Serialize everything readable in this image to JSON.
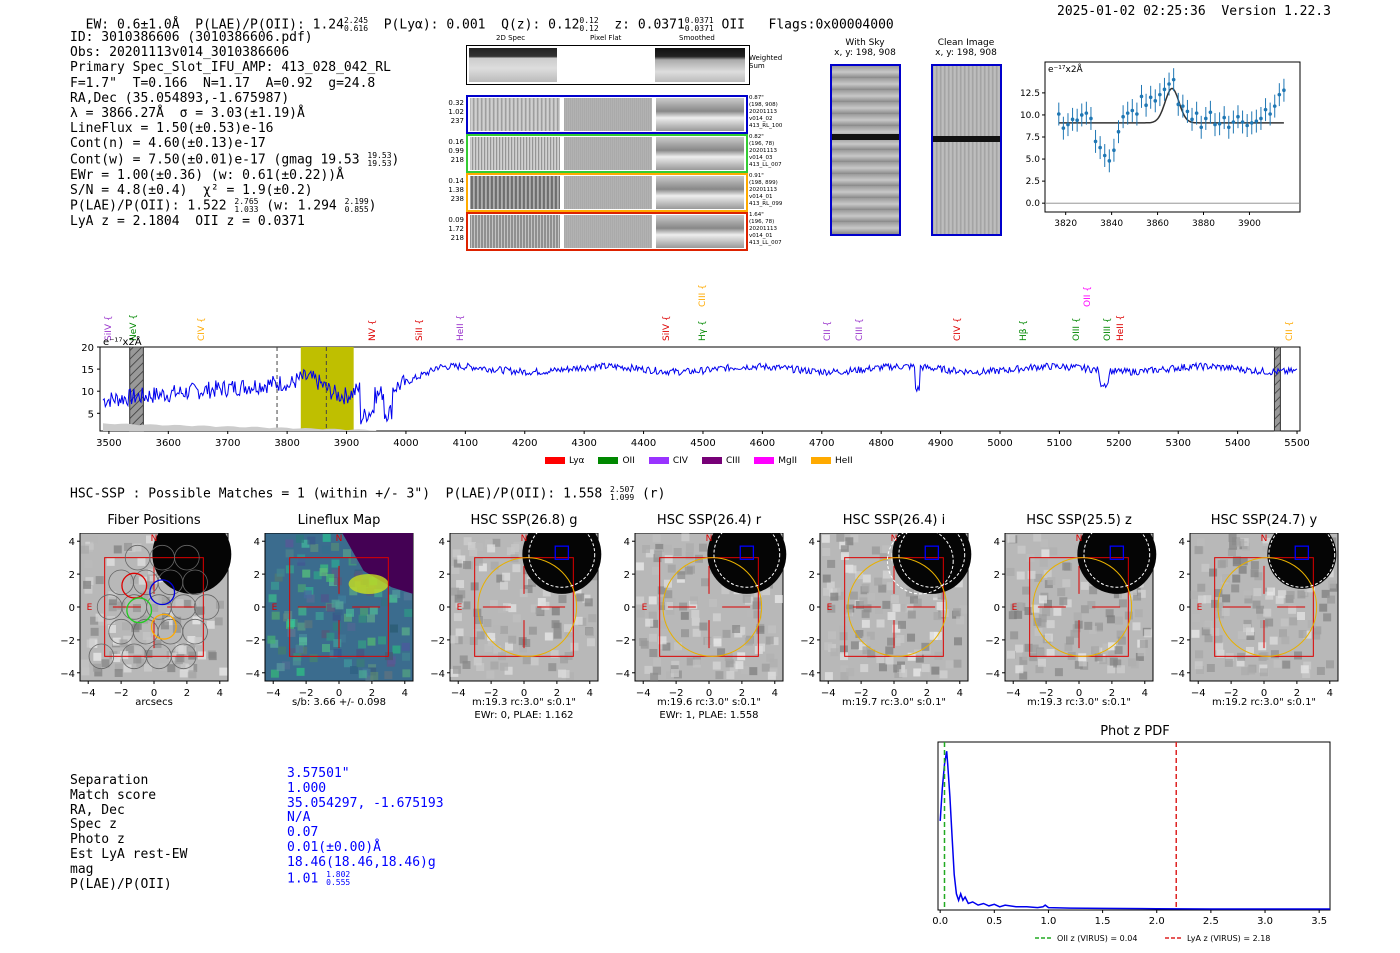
{
  "header": {
    "ew_label": "EW:",
    "ew_value": "0.6±1.0Å",
    "plae_label": "P(LAE)/P(OII):",
    "plae_value": "1.24",
    "plae_hi": "2.245",
    "plae_lo": "0.616",
    "plya_label": "P(Lyα):",
    "plya_value": "0.001",
    "qz_label": "Q(z):",
    "qz_value": "0.12",
    "qz_hi": "0.12",
    "qz_lo": "0.12",
    "z_label": "z:",
    "z_value": "0.0371",
    "z_hi": "0.0371",
    "z_lo": "0.0371",
    "z_line": "OII",
    "flags": "Flags:0x00004000",
    "datetime": "2025-01-02 02:25:36",
    "version": "Version 1.22.3"
  },
  "info": {
    "id": "ID: 3010386606 (3010386606.pdf)",
    "obs": "Obs: 20201113v014_3010386606",
    "primary": "Primary Spec_Slot_IFU_AMP: 413_028_042_RL",
    "params": "F=1.7\"  T=0.166  N=1.17  A=0.92  g=24.8",
    "radec": "RA,Dec (35.054893,-1.675987)",
    "wave": "λ = 3866.27Å  σ = 3.03(±1.19)Å",
    "lineflux": "LineFlux = 1.50(±0.53)e-16",
    "contn": "Cont(n) = 4.60(±0.13)e-17",
    "contw": "Cont(w) = 7.50(±0.01)e-17 (gmag 19.53",
    "contw_hi": "19.53",
    "contw_lo": "19.53",
    "contw_end": ")",
    "ewr": "EWr = 1.00(±0.36) (w: 0.61(±0.22))Å",
    "sn": "S/N = 4.8(±0.4)  χ² = 1.9(±0.2)",
    "plae": "P(LAE)/P(OII): 1.522",
    "plae_hi": "2.765",
    "plae_lo": "1.033",
    "plae_w": "(w: 1.294",
    "plae_w_hi": "2.199",
    "plae_w_lo": "0.855",
    "plae_w_end": ")",
    "lyaz": "LyA z = 2.1804  OII z = 0.0371"
  },
  "spec2d": {
    "col_titles": [
      "2D Spec",
      "Pixel Flat",
      "Smoothed"
    ],
    "weighted_sum": "Weighted Sum",
    "rows": [
      {
        "left": [
          "0.32",
          "1.02",
          "237"
        ],
        "right": [
          "0.87\"",
          "(198, 908)",
          "20201113",
          "v014_02",
          "413_RL_100"
        ],
        "color": "#0000cc"
      },
      {
        "left": [
          "0.16",
          "0.99",
          "218"
        ],
        "right": [
          "0.82\"",
          "(196, 78)",
          "20201113",
          "v014_03",
          "413_LL_007"
        ],
        "color": "#33cc33"
      },
      {
        "left": [
          "0.14",
          "1.38",
          "238"
        ],
        "right": [
          "0.91\"",
          "(198, 899)",
          "20201113",
          "v014_01",
          "413_RL_099"
        ],
        "color": "#ffaa00"
      },
      {
        "left": [
          "0.09",
          "1.72",
          "218"
        ],
        "right": [
          "1.64\"",
          "(196, 78)",
          "20201113",
          "v014_01",
          "413_LL_007"
        ],
        "color": "#dd2200"
      }
    ]
  },
  "with_sky": {
    "title": "With Sky",
    "coords": "x, y: 198, 908"
  },
  "clean_image": {
    "title": "Clean Image",
    "coords": "x, y: 198, 908"
  },
  "zoom_spec": {
    "unit": "e⁻¹⁷x2Å",
    "yticks": [
      "12.5",
      "10.0",
      "7.5",
      "5.0",
      "2.5",
      "0.0"
    ],
    "ytick_vals": [
      12.5,
      10.0,
      7.5,
      5.0,
      2.5,
      0.0
    ],
    "xticks": [
      "3820",
      "3840",
      "3860",
      "3880",
      "3900"
    ],
    "xtick_vals": [
      3820,
      3840,
      3860,
      3880,
      3900
    ],
    "points": [
      [
        3817,
        10.1
      ],
      [
        3819,
        8.5
      ],
      [
        3821,
        8.9
      ],
      [
        3823,
        9.5
      ],
      [
        3825,
        9.4
      ],
      [
        3827,
        10.0
      ],
      [
        3829,
        10.2
      ],
      [
        3831,
        9.6
      ],
      [
        3833,
        7.0
      ],
      [
        3835,
        6.3
      ],
      [
        3837,
        5.4
      ],
      [
        3839,
        4.8
      ],
      [
        3841,
        6.0
      ],
      [
        3843,
        8.1
      ],
      [
        3845,
        9.8
      ],
      [
        3847,
        10.2
      ],
      [
        3849,
        10.5
      ],
      [
        3851,
        10.1
      ],
      [
        3853,
        12.1
      ],
      [
        3855,
        11.1
      ],
      [
        3857,
        12.0
      ],
      [
        3859,
        11.6
      ],
      [
        3861,
        12.3
      ],
      [
        3863,
        12.9
      ],
      [
        3865,
        13.5
      ],
      [
        3867,
        14.0
      ],
      [
        3869,
        11.2
      ],
      [
        3871,
        11.0
      ],
      [
        3873,
        10.4
      ],
      [
        3875,
        9.5
      ],
      [
        3877,
        10.2
      ],
      [
        3879,
        8.6
      ],
      [
        3881,
        9.6
      ],
      [
        3883,
        10.3
      ],
      [
        3885,
        8.9
      ],
      [
        3887,
        9.0
      ],
      [
        3889,
        9.7
      ],
      [
        3891,
        8.6
      ],
      [
        3893,
        9.2
      ],
      [
        3895,
        9.8
      ],
      [
        3897,
        9.2
      ],
      [
        3899,
        8.8
      ],
      [
        3901,
        9.1
      ],
      [
        3903,
        9.3
      ],
      [
        3905,
        9.6
      ],
      [
        3907,
        10.6
      ],
      [
        3909,
        10.1
      ],
      [
        3911,
        11.0
      ],
      [
        3913,
        12.3
      ],
      [
        3915,
        12.8
      ]
    ],
    "fit_base": 9.1,
    "fit_peak": 3.9,
    "fit_center": 3866.3,
    "fit_sigma": 3.03
  },
  "full_spec": {
    "unit": "e⁻¹⁷x2Å",
    "yticks": [
      "20",
      "15",
      "10",
      "5"
    ],
    "ytick_vals": [
      20,
      15,
      10,
      5
    ],
    "xticks": [
      "3500",
      "3600",
      "3700",
      "3800",
      "3900",
      "4000",
      "4100",
      "4200",
      "4300",
      "4400",
      "4500",
      "4600",
      "4700",
      "4800",
      "4900",
      "5000",
      "5100",
      "5200",
      "5300",
      "5400",
      "5500"
    ],
    "xtick_vals": [
      3500,
      3600,
      3700,
      3800,
      3900,
      4000,
      4100,
      4200,
      4300,
      4400,
      4500,
      4600,
      4700,
      4800,
      4900,
      5000,
      5100,
      5200,
      5300,
      5400,
      5500
    ],
    "line_labels": [
      {
        "name": "SiIV",
        "w": 3500,
        "color": "#9933cc",
        "high": false
      },
      {
        "name": "NeV",
        "w": 3543,
        "color": "#008800",
        "high": false
      },
      {
        "name": "CIV",
        "w": 3656,
        "color": "#ffaa00",
        "high": false
      },
      {
        "name": "CIII",
        "w": 4500,
        "color": "#ffaa00",
        "high": true
      },
      {
        "name": "NV",
        "w": 3945,
        "color": "#dd0000",
        "high": false
      },
      {
        "name": "SiII",
        "w": 4024,
        "color": "#dd0000",
        "high": false
      },
      {
        "name": "HeII",
        "w": 4092,
        "color": "#9933cc",
        "high": false
      },
      {
        "name": "SiIV",
        "w": 4440,
        "color": "#dd0000",
        "high": false
      },
      {
        "name": "Hγ",
        "w": 4500,
        "color": "#008800",
        "high": false
      },
      {
        "name": "CII",
        "w": 4710,
        "color": "#9933cc",
        "high": false
      },
      {
        "name": "CIII",
        "w": 4765,
        "color": "#9933cc",
        "high": false
      },
      {
        "name": "CIV",
        "w": 4930,
        "color": "#dd0000",
        "high": false
      },
      {
        "name": "Hβ",
        "w": 5040,
        "color": "#008800",
        "high": false
      },
      {
        "name": "OII",
        "w": 5148,
        "color": "#ff00ff",
        "high": true
      },
      {
        "name": "OIII",
        "w": 5130,
        "color": "#008800",
        "high": false
      },
      {
        "name": "OIII",
        "w": 5182,
        "color": "#008800",
        "high": false
      },
      {
        "name": "HeII",
        "w": 5203,
        "color": "#dd0000",
        "high": false
      },
      {
        "name": "CII",
        "w": 5488,
        "color": "#ffaa00",
        "high": false
      }
    ],
    "legend": [
      {
        "label": "Lyα",
        "color": "#ff0000"
      },
      {
        "label": "OII",
        "color": "#008800"
      },
      {
        "label": "CIV",
        "color": "#9933ff"
      },
      {
        "label": "CIII",
        "color": "#770077"
      },
      {
        "label": "MgII",
        "color": "#ff00ff"
      },
      {
        "label": "HeII",
        "color": "#ffaa00"
      }
    ],
    "highlight_start": 3823,
    "highlight_end": 3912,
    "dashed_lines": [
      3783,
      3866
    ],
    "hatch_regions": [
      [
        3535,
        3558
      ],
      [
        5462,
        5472
      ]
    ]
  },
  "hsc": {
    "header": "HSC-SSP : Possible Matches = 1 (within +/- 3\")  P(LAE)/P(OII): 1.558",
    "hdr_hi": "2.507",
    "hdr_lo": "1.099",
    "hdr_band": "(r)",
    "ticks": [
      "4",
      "2",
      "0",
      "−2",
      "−4"
    ],
    "xticks": [
      "−4",
      "−2",
      "0",
      "2",
      "4"
    ],
    "tick_vals": [
      4,
      2,
      0,
      -2,
      -4
    ],
    "compass_n": "N",
    "compass_e": "E",
    "panels": [
      {
        "title": "Fiber Positions",
        "cap1": "arcsecs",
        "cap2": ""
      },
      {
        "title": "Lineflux Map",
        "cap1": "s/b: 3.66 +/- 0.098",
        "cap2": ""
      },
      {
        "title": "HSC SSP(26.8) g",
        "cap1": "m:19.3 rc:3.0\"  s:0.1\"",
        "cap2": "EWr: 0, PLAE: 1.162"
      },
      {
        "title": "HSC SSP(26.4) r",
        "cap1": "m:19.6 rc:3.0\"  s:0.1\"",
        "cap2": "EWr: 1, PLAE: 1.558"
      },
      {
        "title": "HSC SSP(26.4) i",
        "cap1": "m:19.7 rc:3.0\"  s:0.1\"",
        "cap2": ""
      },
      {
        "title": "HSC SSP(25.5) z",
        "cap1": "m:19.3 rc:3.0\"  s:0.1\"",
        "cap2": ""
      },
      {
        "title": "HSC SSP(24.7) y",
        "cap1": "m:19.2 rc:3.0\"  s:0.1\"",
        "cap2": ""
      }
    ]
  },
  "match": {
    "labels": [
      "Separation",
      "Match score",
      "RA, Dec",
      "Spec z",
      "Photo z",
      "Est LyA rest-EW",
      "mag",
      "P(LAE)/P(OII)"
    ],
    "values": [
      "3.57501\"",
      "1.000",
      "35.054297, -1.675193",
      "N/A",
      "0.07",
      "0.01(±0.00)Å",
      "18.46(18.46,18.46)g",
      "1.01"
    ],
    "plae_hi": "1.802",
    "plae_lo": "0.555"
  },
  "photz": {
    "title": "Phot z PDF",
    "xticks": [
      "0.0",
      "0.5",
      "1.0",
      "1.5",
      "2.0",
      "2.5",
      "3.0",
      "3.5"
    ],
    "xtick_vals": [
      0,
      0.5,
      1.0,
      1.5,
      2.0,
      2.5,
      3.0,
      3.5
    ],
    "oii_z": 0.04,
    "lya_z": 2.18,
    "legend_oii": "OII z (VIRUS) = 0.04",
    "legend_lya": "LyA z (VIRUS) = 2.18",
    "pdf_points": [
      [
        0,
        0.55
      ],
      [
        0.02,
        0.75
      ],
      [
        0.04,
        0.9
      ],
      [
        0.06,
        0.98
      ],
      [
        0.07,
        0.9
      ],
      [
        0.09,
        0.7
      ],
      [
        0.11,
        0.45
      ],
      [
        0.13,
        0.22
      ],
      [
        0.15,
        0.1
      ],
      [
        0.17,
        0.06
      ],
      [
        0.19,
        0.1
      ],
      [
        0.21,
        0.06
      ],
      [
        0.23,
        0.08
      ],
      [
        0.26,
        0.04
      ],
      [
        0.3,
        0.05
      ],
      [
        0.35,
        0.03
      ],
      [
        0.4,
        0.04
      ],
      [
        0.45,
        0.025
      ],
      [
        0.5,
        0.035
      ],
      [
        0.55,
        0.02
      ],
      [
        0.6,
        0.03
      ],
      [
        0.7,
        0.02
      ],
      [
        0.8,
        0.02
      ],
      [
        0.9,
        0.015
      ],
      [
        0.95,
        0.02
      ],
      [
        0.97,
        0.03
      ],
      [
        1.0,
        0.015
      ],
      [
        1.2,
        0.012
      ],
      [
        1.5,
        0.01
      ],
      [
        2.0,
        0.008
      ],
      [
        2.5,
        0.006
      ],
      [
        3.0,
        0.006
      ],
      [
        3.6,
        0.006
      ]
    ]
  }
}
